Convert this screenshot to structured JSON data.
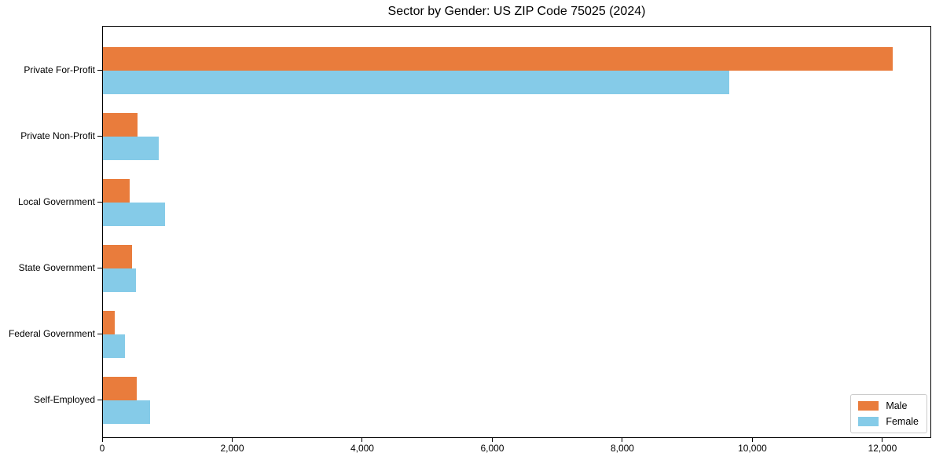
{
  "chart_data": {
    "type": "bar",
    "orientation": "horizontal",
    "title": "Sector by Gender: US ZIP Code 75025 (2024)",
    "categories": [
      "Private For-Profit",
      "Private Non-Profit",
      "Local Government",
      "State Government",
      "Federal Government",
      "Self-Employed"
    ],
    "series": [
      {
        "name": "Male",
        "color": "#E97C3C",
        "values": [
          12150,
          535,
          410,
          445,
          180,
          515
        ]
      },
      {
        "name": "Female",
        "color": "#85CBE8",
        "values": [
          9630,
          860,
          955,
          505,
          340,
          730
        ]
      }
    ],
    "xlabel": "",
    "ylabel": "",
    "xlim": [
      0,
      12750
    ],
    "xticks": [
      0,
      2000,
      4000,
      6000,
      8000,
      10000,
      12000
    ],
    "xtick_labels": [
      "0",
      "2,000",
      "4,000",
      "6,000",
      "8,000",
      "10,000",
      "12,000"
    ],
    "grid": false,
    "legend": {
      "position": "lower right",
      "entries": [
        "Male",
        "Female"
      ]
    },
    "colors": {
      "axis": "#000000",
      "background": "#ffffff",
      "legend_border": "#cccccc"
    }
  }
}
